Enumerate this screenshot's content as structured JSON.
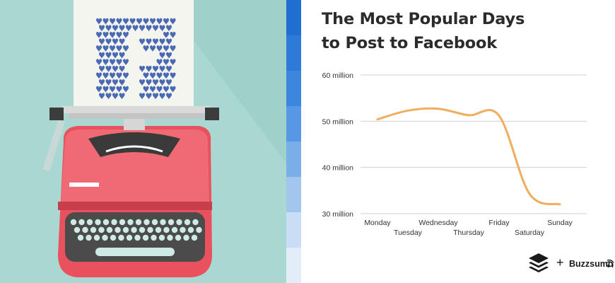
{
  "title_lines": [
    "The Most Popular Days",
    "to Post to Facebook"
  ],
  "brand": {
    "plus": "+",
    "name": "Buzzsumo",
    "logo_icon": "buffer-stack-icon",
    "wifi_icon": "signal-waves-icon"
  },
  "illustration": {
    "subject": "typewriter",
    "paper_icon": "facebook-f-hearts-icon",
    "colors": {
      "background": "#a9d7d1",
      "shadow": "#8fc3bd",
      "typewriter_body": "#e8515d",
      "typewriter_top": "#ef6a74",
      "keyboard_panel": "#4b4b4b",
      "keys": "#cfe9e5",
      "paper": "#f5f5f0",
      "heart_blue": "#4a69b3"
    }
  },
  "stripe_colors": [
    "#1f6fd1",
    "#2d7ad8",
    "#3c86de",
    "#5797e3",
    "#7aaee9",
    "#a3c6ef",
    "#c9ddf5",
    "#e3edfa"
  ],
  "chart_data": {
    "type": "line",
    "x": [
      "Monday",
      "Tuesday",
      "Wednesday",
      "Thursday",
      "Friday",
      "Saturday",
      "Sunday"
    ],
    "series": [
      {
        "values": [
          50.4,
          52.3,
          52.7,
          51.3,
          51.2,
          34.3,
          32
        ]
      }
    ],
    "ylim": [
      30,
      60
    ],
    "y_ticks": [
      30,
      40,
      50,
      60
    ],
    "y_tick_labels": [
      "30 million",
      "40 million",
      "50 million",
      "60 million"
    ],
    "grid": true,
    "line_color": "#f0ad5d",
    "grid_color": "#cfcfcf"
  }
}
